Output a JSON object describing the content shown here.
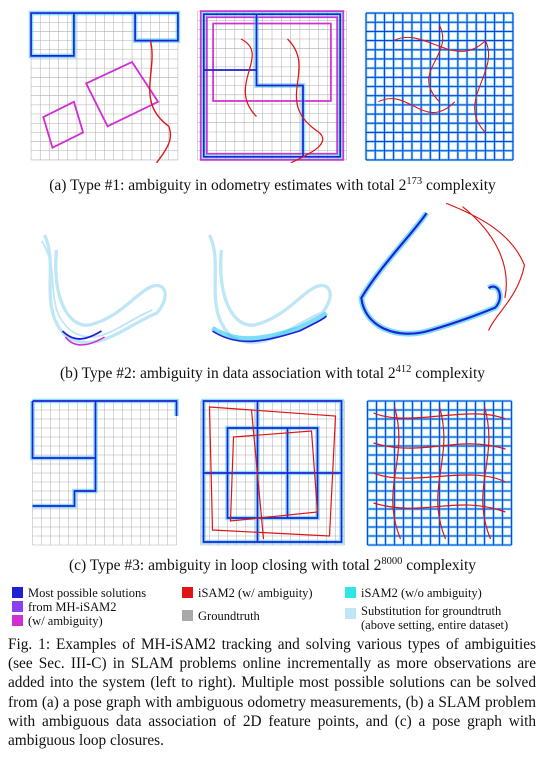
{
  "rows": [
    {
      "id": "a",
      "caption": {
        "prefix": "(a) Type #1: ambiguity in odometry estimates with total 2",
        "exponent": "173",
        "suffix": " complexity"
      }
    },
    {
      "id": "b",
      "caption": {
        "prefix": "(b) Type #2: ambiguity in data association with total 2",
        "exponent": "412",
        "suffix": " complexity"
      }
    },
    {
      "id": "c",
      "caption": {
        "prefix": "(c) Type #3: ambiguity in loop closing with total 2",
        "exponent": "8000",
        "suffix": " complexity"
      }
    }
  ],
  "legend": {
    "most_possible_line1": "Most possible solutions",
    "most_possible_line2": "from MH-iSAM2",
    "most_possible_line3": "(w/ ambiguity)",
    "isam2_w": "iSAM2 (w/ ambiguity)",
    "groundtruth": "Groundtruth",
    "isam2_wo": "iSAM2 (w/o ambiguity)",
    "substitution_line1": "Substitution for groundtruth",
    "substitution_line2": "(above setting, entire dataset)",
    "colors": {
      "most_possible_1": "#1f1fd6",
      "most_possible_2": "#8a3ff0",
      "most_possible_3": "#d12fd1",
      "isam2_w": "#e01414",
      "groundtruth": "#a8a8a8",
      "isam2_wo": "#2ee6e6",
      "substitution": "#bfe6f7"
    }
  },
  "caption": {
    "text": "Fig. 1: Examples of MH-iSAM2 tracking and solving various types of ambiguities (see Sec. III-C) in SLAM problems online incrementally as more observations are added into the system (left to right). Multiple most possible solutions can be solved from (a) a pose graph with ambiguous odometry measurements, (b) a SLAM problem with ambiguous data association of 2D feature points, and (c) a pose graph with ambiguous loop closures."
  }
}
